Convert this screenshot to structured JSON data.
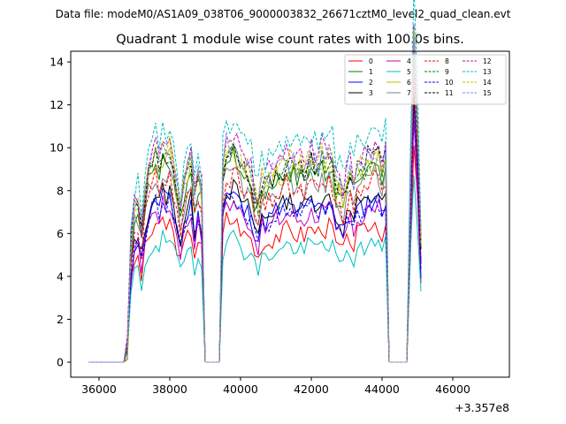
{
  "chart_data": {
    "type": "line",
    "suptitle": "Data file: modeM0/AS1A09_038T06_9000003832_26671cztM0_level2_quad_clean.evt",
    "title": "Quadrant 1 module wise count rates with 100.0s bins.",
    "xlabel": "",
    "ylabel": "",
    "x_offset_label": "+3.357e8",
    "xlim": [
      35200,
      47600
    ],
    "ylim": [
      -0.7,
      14.5
    ],
    "xticks": [
      36000,
      38000,
      40000,
      42000,
      44000,
      46000
    ],
    "yticks": [
      0,
      2,
      4,
      6,
      8,
      10,
      12,
      14
    ],
    "legend_position": "top-right",
    "grid": false,
    "x_sampling": {
      "start": 35700,
      "step": 100,
      "count": 116
    },
    "reference_profile": [
      0,
      0,
      0,
      0,
      0,
      0,
      0,
      0,
      0,
      0,
      0,
      0.5,
      4.3,
      5.7,
      5.9,
      4.9,
      6.3,
      7.1,
      7.4,
      7.9,
      7.4,
      8.0,
      7.7,
      8.0,
      7.2,
      6.6,
      5.6,
      6.6,
      7.1,
      7.5,
      6.2,
      7.0,
      6.4,
      0,
      0,
      0,
      0,
      0,
      7.2,
      8.2,
      8.0,
      8.1,
      7.9,
      7.6,
      7.2,
      7.2,
      7.0,
      6.3,
      5.9,
      6.8,
      6.7,
      6.9,
      7.0,
      7.3,
      7.2,
      7.3,
      7.6,
      7.5,
      7.4,
      7.2,
      7.3,
      7.2,
      7.5,
      7.6,
      7.5,
      7.4,
      7.8,
      7.5,
      7.7,
      7.6,
      6.5,
      6.6,
      6.2,
      6.8,
      7.1,
      6.6,
      7.3,
      7.3,
      7.4,
      7.8,
      7.6,
      7.9,
      7.8,
      7.2,
      7.9,
      0,
      0,
      0,
      0,
      0,
      0,
      6.6,
      12.4,
      9.0,
      4.5
    ],
    "series": [
      {
        "name": "0",
        "color": "#ff0000",
        "dash": "solid",
        "scale": 0.82,
        "seed": 3
      },
      {
        "name": "1",
        "color": "#008000",
        "dash": "solid",
        "scale": 1.18,
        "seed": 7
      },
      {
        "name": "2",
        "color": "#0000ff",
        "dash": "solid",
        "scale": 0.97,
        "seed": 11
      },
      {
        "name": "3",
        "color": "#000000",
        "dash": "solid",
        "scale": 1.0,
        "seed": 13
      },
      {
        "name": "4",
        "color": "#bf00bf",
        "dash": "solid",
        "scale": 0.92,
        "seed": 17
      },
      {
        "name": "5",
        "color": "#00bfbf",
        "dash": "solid",
        "scale": 0.72,
        "seed": 19
      },
      {
        "name": "6",
        "color": "#bfbf00",
        "dash": "solid",
        "scale": 1.2,
        "seed": 23
      },
      {
        "name": "7",
        "color": "#808080",
        "dash": "solid",
        "scale": 1.12,
        "seed": 29
      },
      {
        "name": "8",
        "color": "#ff0000",
        "dash": "dashed",
        "scale": 1.08,
        "seed": 31
      },
      {
        "name": "9",
        "color": "#008000",
        "dash": "dashed",
        "scale": 1.22,
        "seed": 37
      },
      {
        "name": "10",
        "color": "#0000ff",
        "dash": "dashed",
        "scale": 0.95,
        "seed": 41
      },
      {
        "name": "11",
        "color": "#000000",
        "dash": "dashed",
        "scale": 1.23,
        "seed": 43
      },
      {
        "name": "12",
        "color": "#bf00bf",
        "dash": "dashed",
        "scale": 1.3,
        "seed": 47
      },
      {
        "name": "13",
        "color": "#00bfbf",
        "dash": "dashed",
        "scale": 1.4,
        "seed": 53
      },
      {
        "name": "14",
        "color": "#bfbf00",
        "dash": "dashed",
        "scale": 1.27,
        "seed": 59
      },
      {
        "name": "15",
        "color": "#8080ff",
        "dash": "dashed",
        "scale": 1.25,
        "seed": 61
      }
    ]
  }
}
